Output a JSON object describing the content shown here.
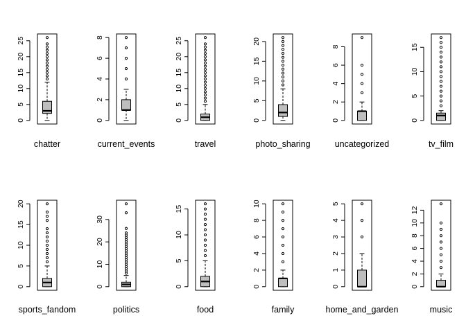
{
  "chart_data": [
    {
      "type": "boxplot",
      "xlabel": "chatter",
      "ticks": [
        0,
        5,
        10,
        15,
        20,
        25
      ],
      "ylim": [
        0,
        26
      ],
      "box": {
        "q1": 2.2,
        "median": 3,
        "q3": 6,
        "whisker_low": 0,
        "whisker_high": 12
      },
      "outliers": [
        13,
        14,
        15,
        16,
        17,
        18,
        19,
        20,
        21,
        22,
        23,
        24,
        26
      ]
    },
    {
      "type": "boxplot",
      "xlabel": "current_events",
      "ticks": [
        0,
        2,
        4,
        6,
        8
      ],
      "ylim": [
        0,
        8
      ],
      "box": {
        "q1": 1,
        "median": 1,
        "q3": 2,
        "whisker_low": 0,
        "whisker_high": 3
      },
      "outliers": [
        4,
        5,
        6,
        7,
        8
      ]
    },
    {
      "type": "boxplot",
      "xlabel": "travel",
      "ticks": [
        0,
        5,
        10,
        15,
        20,
        25
      ],
      "ylim": [
        0,
        26
      ],
      "box": {
        "q1": 0,
        "median": 1,
        "q3": 2,
        "whisker_low": 0,
        "whisker_high": 5
      },
      "outliers": [
        6,
        7,
        8,
        9,
        10,
        11,
        12,
        13,
        14,
        15,
        16,
        17,
        18,
        19,
        20,
        21,
        22,
        23,
        24,
        26
      ]
    },
    {
      "type": "boxplot",
      "xlabel": "photo_sharing",
      "ticks": [
        0,
        5,
        10,
        15,
        20
      ],
      "ylim": [
        0,
        21
      ],
      "box": {
        "q1": 1,
        "median": 2,
        "q3": 4,
        "whisker_low": 0,
        "whisker_high": 8
      },
      "outliers": [
        9,
        10,
        11,
        12,
        13,
        14,
        15,
        16,
        17,
        18,
        19,
        20,
        21
      ]
    },
    {
      "type": "boxplot",
      "xlabel": "uncategorized",
      "ticks": [
        0,
        2,
        4,
        6,
        8
      ],
      "ylim": [
        0,
        9
      ],
      "box": {
        "q1": 0,
        "median": 1,
        "q3": 1,
        "whisker_low": 0,
        "whisker_high": 2
      },
      "outliers": [
        3,
        4,
        5,
        6,
        9
      ]
    },
    {
      "type": "boxplot",
      "xlabel": "tv_film",
      "ticks": [
        0,
        5,
        10,
        15
      ],
      "ylim": [
        0,
        17
      ],
      "box": {
        "q1": 0,
        "median": 1,
        "q3": 1.5,
        "whisker_low": 0,
        "whisker_high": 2
      },
      "outliers": [
        3,
        4,
        5,
        6,
        7,
        8,
        9,
        10,
        11,
        12,
        13,
        14,
        15,
        16,
        17
      ]
    },
    {
      "type": "boxplot",
      "xlabel": "sports_fandom",
      "ticks": [
        0,
        5,
        10,
        15,
        20
      ],
      "ylim": [
        0,
        20
      ],
      "box": {
        "q1": 0,
        "median": 1,
        "q3": 2,
        "whisker_low": 0,
        "whisker_high": 5
      },
      "outliers": [
        6,
        7,
        8,
        9,
        10,
        11,
        12,
        13,
        14,
        16,
        17,
        18,
        20
      ]
    },
    {
      "type": "boxplot",
      "xlabel": "politics",
      "ticks": [
        0,
        10,
        20,
        30
      ],
      "ylim": [
        0,
        37
      ],
      "box": {
        "q1": 0,
        "median": 1,
        "q3": 2,
        "whisker_low": 0,
        "whisker_high": 5
      },
      "outliers": [
        6,
        7,
        8,
        9,
        10,
        11,
        12,
        13,
        14,
        15,
        16,
        17,
        18,
        19,
        20,
        21,
        22,
        23,
        24,
        26,
        33,
        37
      ]
    },
    {
      "type": "boxplot",
      "xlabel": "food",
      "ticks": [
        0,
        5,
        10,
        15
      ],
      "ylim": [
        0,
        16
      ],
      "box": {
        "q1": 0,
        "median": 1,
        "q3": 2,
        "whisker_low": 0,
        "whisker_high": 5
      },
      "outliers": [
        6,
        7,
        8,
        9,
        10,
        11,
        12,
        13,
        14,
        15,
        16
      ]
    },
    {
      "type": "boxplot",
      "xlabel": "family",
      "ticks": [
        0,
        2,
        4,
        6,
        8,
        10
      ],
      "ylim": [
        0,
        10
      ],
      "box": {
        "q1": 0,
        "median": 1,
        "q3": 1,
        "whisker_low": 0,
        "whisker_high": 2
      },
      "outliers": [
        3,
        4,
        5,
        6,
        7,
        8,
        9,
        10
      ]
    },
    {
      "type": "boxplot",
      "xlabel": "home_and_garden",
      "ticks": [
        0,
        1,
        2,
        3,
        4,
        5
      ],
      "ylim": [
        0,
        5
      ],
      "box": {
        "q1": 0,
        "median": 0,
        "q3": 1,
        "whisker_low": 0,
        "whisker_high": 2
      },
      "outliers": [
        3,
        4,
        5
      ]
    },
    {
      "type": "boxplot",
      "xlabel": "music",
      "ticks": [
        0,
        2,
        4,
        6,
        8,
        10,
        12
      ],
      "ylim": [
        0,
        13
      ],
      "box": {
        "q1": 0,
        "median": 0,
        "q3": 1,
        "whisker_low": 0,
        "whisker_high": 2
      },
      "outliers": [
        3,
        4,
        5,
        6,
        7,
        8,
        9,
        10,
        13
      ]
    }
  ]
}
